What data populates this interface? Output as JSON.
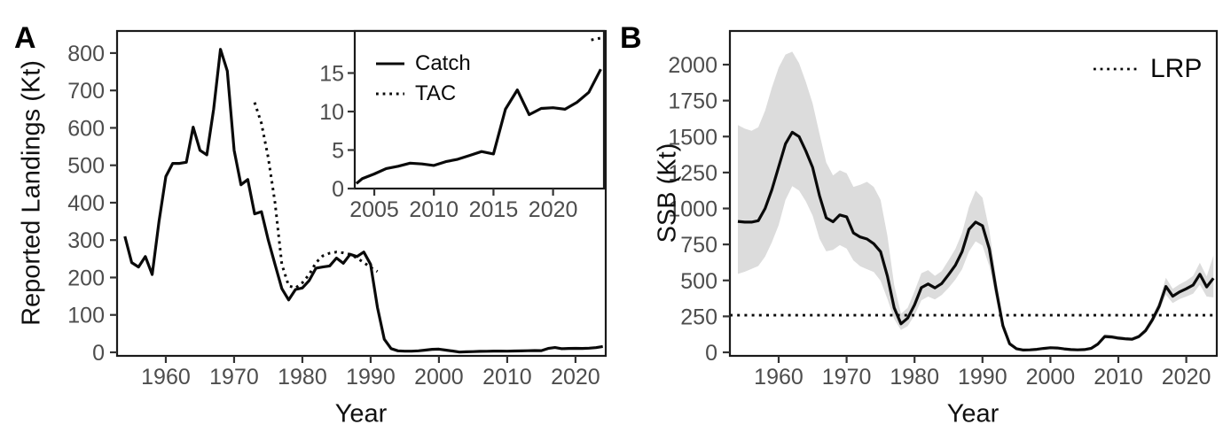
{
  "colors": {
    "background": "#ffffff",
    "line": "#0a0a0a",
    "ribbon": "#dcdcdc",
    "tick_label": "#4d4d4d",
    "tick_mark": "#333333",
    "border": "#1a1a1a",
    "axis_title": "#111111"
  },
  "panels": {
    "a": "A",
    "b": "B"
  },
  "chart_data": [
    {
      "id": "panel_a",
      "type": "line",
      "xlabel": "Year",
      "ylabel": "Reported Landings (Kt)",
      "xlim": [
        1952.86,
        2024.43
      ],
      "ylim": [
        -9.5,
        859
      ],
      "xticks": [
        1960,
        1970,
        1980,
        1990,
        2000,
        2010,
        2020
      ],
      "yticks": [
        0,
        100,
        200,
        300,
        400,
        500,
        600,
        700,
        800
      ],
      "grid": false,
      "legend_entries": [],
      "series": [
        {
          "name": "Catch",
          "style": "solid",
          "points": [
            [
              1954,
              310
            ],
            [
              1955,
              240
            ],
            [
              1956,
              228
            ],
            [
              1957,
              256
            ],
            [
              1958,
              208
            ],
            [
              1959,
              350
            ],
            [
              1960,
              470
            ],
            [
              1961,
              505
            ],
            [
              1962,
              505
            ],
            [
              1963,
              508
            ],
            [
              1964,
              602
            ],
            [
              1965,
              540
            ],
            [
              1966,
              528
            ],
            [
              1967,
              650
            ],
            [
              1968,
              810
            ],
            [
              1969,
              752
            ],
            [
              1970,
              540
            ],
            [
              1971,
              448
            ],
            [
              1972,
              462
            ],
            [
              1973,
              370
            ],
            [
              1974,
              376
            ],
            [
              1975,
              300
            ],
            [
              1976,
              235
            ],
            [
              1977,
              170
            ],
            [
              1978,
              140
            ],
            [
              1979,
              168
            ],
            [
              1980,
              172
            ],
            [
              1981,
              192
            ],
            [
              1982,
              225
            ],
            [
              1983,
              228
            ],
            [
              1984,
              231
            ],
            [
              1985,
              252
            ],
            [
              1986,
              238
            ],
            [
              1987,
              262
            ],
            [
              1988,
              256
            ],
            [
              1989,
              268
            ],
            [
              1990,
              235
            ],
            [
              1991,
              120
            ],
            [
              1992,
              35
            ],
            [
              1993,
              10
            ],
            [
              1994,
              4
            ],
            [
              1995,
              3
            ],
            [
              1996,
              3
            ],
            [
              1997,
              4
            ],
            [
              1998,
              6
            ],
            [
              1999,
              8
            ],
            [
              2000,
              8.5
            ],
            [
              2001,
              6
            ],
            [
              2002,
              3.5
            ],
            [
              2003,
              0.7
            ],
            [
              2004,
              1.3
            ],
            [
              2005,
              1.9
            ],
            [
              2006,
              2.6
            ],
            [
              2007,
              2.9
            ],
            [
              2008,
              3.3
            ],
            [
              2009,
              3.2
            ],
            [
              2010,
              3.0
            ],
            [
              2011,
              3.5
            ],
            [
              2012,
              3.8
            ],
            [
              2013,
              4.3
            ],
            [
              2014,
              4.8
            ],
            [
              2015,
              4.5
            ],
            [
              2016,
              10.3
            ],
            [
              2017,
              12.8
            ],
            [
              2018,
              9.6
            ],
            [
              2019,
              10.4
            ],
            [
              2020,
              10.5
            ],
            [
              2021,
              10.3
            ],
            [
              2022,
              11.2
            ],
            [
              2023,
              12.5
            ],
            [
              2024,
              15.5
            ]
          ]
        },
        {
          "name": "TAC",
          "style": "dotted",
          "points": [
            [
              1973,
              668
            ],
            [
              1974,
              612
            ],
            [
              1975,
              520
            ],
            [
              1976,
              400
            ],
            [
              1977,
              235
            ],
            [
              1978,
              178
            ],
            [
              1979,
              172
            ],
            [
              1980,
              186
            ],
            [
              1981,
              208
            ],
            [
              1982,
              240
            ],
            [
              1983,
              258
            ],
            [
              1984,
              265
            ],
            [
              1985,
              268
            ],
            [
              1986,
              266
            ],
            [
              1987,
              262
            ],
            [
              1988,
              252
            ],
            [
              1989,
              240
            ],
            [
              1990,
              227
            ],
            [
              1991,
              216
            ]
          ]
        }
      ]
    },
    {
      "id": "inset",
      "type": "line",
      "xlabel": "",
      "ylabel": "",
      "xlim": [
        2003.36,
        2024.27
      ],
      "ylim": [
        0,
        20.46
      ],
      "xticks": [
        2005,
        2010,
        2015,
        2020
      ],
      "yticks": [
        0,
        5,
        10,
        15
      ],
      "grid": false,
      "legend_position": "top-left",
      "legend_entries": [
        "Catch",
        "TAC"
      ],
      "series": [
        {
          "name": "Catch",
          "style": "solid",
          "points": [
            [
              2003.5,
              0.65
            ],
            [
              2004,
              1.3
            ],
            [
              2005,
              1.9
            ],
            [
              2006,
              2.6
            ],
            [
              2007,
              2.9
            ],
            [
              2008,
              3.3
            ],
            [
              2009,
              3.2
            ],
            [
              2010,
              3.0
            ],
            [
              2011,
              3.5
            ],
            [
              2012,
              3.8
            ],
            [
              2013,
              4.3
            ],
            [
              2014,
              4.8
            ],
            [
              2015,
              4.5
            ],
            [
              2016,
              10.3
            ],
            [
              2017,
              12.8
            ],
            [
              2018,
              9.6
            ],
            [
              2019,
              10.4
            ],
            [
              2020,
              10.5
            ],
            [
              2021,
              10.3
            ],
            [
              2022,
              11.2
            ],
            [
              2023,
              12.5
            ],
            [
              2024,
              15.5
            ]
          ]
        },
        {
          "name": "TAC",
          "style": "dotted",
          "points": [
            [
              2023.2,
              19.3
            ],
            [
              2023.7,
              19.45
            ],
            [
              2024.2,
              19.6
            ]
          ]
        }
      ]
    },
    {
      "id": "panel_b",
      "type": "line",
      "xlabel": "Year",
      "ylabel": "SSB (Kt)",
      "xlim": [
        1952.82,
        2024.49
      ],
      "ylim": [
        -24.6,
        2233.9
      ],
      "xticks": [
        1960,
        1970,
        1980,
        1990,
        2000,
        2010,
        2020
      ],
      "yticks": [
        0,
        250,
        500,
        750,
        1000,
        1250,
        1500,
        1750,
        2000
      ],
      "grid": false,
      "legend_position": "top-right",
      "legend_entries": [
        "LRP"
      ],
      "ref_line": {
        "label": "LRP",
        "value": 258,
        "style": "dotted"
      },
      "ribbon": {
        "x": [
          1954,
          1955,
          1956,
          1957,
          1958,
          1959,
          1960,
          1961,
          1962,
          1963,
          1964,
          1965,
          1966,
          1967,
          1968,
          1969,
          1970,
          1971,
          1972,
          1973,
          1974,
          1975,
          1976,
          1977,
          1978,
          1979,
          1980,
          1981,
          1982,
          1983,
          1984,
          1985,
          1986,
          1987,
          1988,
          1989,
          1990,
          1991,
          1992,
          1993,
          1994,
          1995,
          1996,
          1997,
          1998,
          1999,
          2000,
          2001,
          2002,
          2003,
          2004,
          2005,
          2006,
          2007,
          2008,
          2009,
          2010,
          2011,
          2012,
          2013,
          2014,
          2015,
          2016,
          2017,
          2018,
          2019,
          2020,
          2021,
          2022,
          2023,
          2024
        ],
        "upper": [
          1580,
          1555,
          1540,
          1565,
          1680,
          1840,
          1980,
          2070,
          2090,
          2010,
          1880,
          1730,
          1520,
          1320,
          1230,
          1265,
          1245,
          1150,
          1165,
          1185,
          1150,
          1060,
          810,
          470,
          268,
          310,
          425,
          550,
          572,
          532,
          565,
          640,
          718,
          830,
          1010,
          1125,
          1075,
          850,
          520,
          225,
          75,
          32,
          22,
          23,
          28,
          35,
          41,
          38,
          31,
          25,
          23,
          26,
          36,
          70,
          126,
          122,
          114,
          108,
          104,
          124,
          170,
          252,
          358,
          518,
          442,
          472,
          498,
          532,
          622,
          528,
          672
        ],
        "lower": [
          545,
          560,
          580,
          600,
          665,
          765,
          885,
          1060,
          1155,
          1125,
          1050,
          950,
          790,
          702,
          712,
          745,
          722,
          638,
          598,
          578,
          558,
          498,
          372,
          232,
          156,
          182,
          258,
          362,
          388,
          368,
          398,
          448,
          505,
          578,
          700,
          772,
          742,
          598,
          368,
          150,
          46,
          18,
          11,
          12,
          15,
          20,
          24,
          22,
          17,
          13,
          12,
          13,
          20,
          47,
          95,
          93,
          85,
          81,
          78,
          95,
          131,
          199,
          284,
          400,
          342,
          370,
          388,
          408,
          470,
          388,
          382
        ]
      },
      "series": [
        {
          "name": "SSB",
          "style": "solid",
          "points": [
            [
              1954,
              910
            ],
            [
              1955,
              905
            ],
            [
              1956,
              905
            ],
            [
              1957,
              915
            ],
            [
              1958,
              1000
            ],
            [
              1959,
              1130
            ],
            [
              1960,
              1290
            ],
            [
              1961,
              1450
            ],
            [
              1962,
              1530
            ],
            [
              1963,
              1500
            ],
            [
              1964,
              1400
            ],
            [
              1965,
              1285
            ],
            [
              1966,
              1090
            ],
            [
              1967,
              935
            ],
            [
              1968,
              908
            ],
            [
              1969,
              955
            ],
            [
              1970,
              942
            ],
            [
              1971,
              830
            ],
            [
              1972,
              802
            ],
            [
              1973,
              788
            ],
            [
              1974,
              755
            ],
            [
              1975,
              700
            ],
            [
              1976,
              530
            ],
            [
              1977,
              310
            ],
            [
              1978,
              198
            ],
            [
              1979,
              238
            ],
            [
              1980,
              330
            ],
            [
              1981,
              450
            ],
            [
              1982,
              475
            ],
            [
              1983,
              448
            ],
            [
              1984,
              478
            ],
            [
              1985,
              540
            ],
            [
              1986,
              605
            ],
            [
              1987,
              700
            ],
            [
              1988,
              855
            ],
            [
              1989,
              905
            ],
            [
              1990,
              880
            ],
            [
              1991,
              720
            ],
            [
              1992,
              440
            ],
            [
              1993,
              185
            ],
            [
              1994,
              60
            ],
            [
              1995,
              25
            ],
            [
              1996,
              16
            ],
            [
              1997,
              17
            ],
            [
              1998,
              21
            ],
            [
              1999,
              27
            ],
            [
              2000,
              32
            ],
            [
              2001,
              30
            ],
            [
              2002,
              24
            ],
            [
              2003,
              19
            ],
            [
              2004,
              17
            ],
            [
              2005,
              19
            ],
            [
              2006,
              28
            ],
            [
              2007,
              58
            ],
            [
              2008,
              110
            ],
            [
              2009,
              107
            ],
            [
              2010,
              99
            ],
            [
              2011,
              94
            ],
            [
              2012,
              91
            ],
            [
              2013,
              109
            ],
            [
              2014,
              150
            ],
            [
              2015,
              225
            ],
            [
              2016,
              320
            ],
            [
              2017,
              458
            ],
            [
              2018,
              390
            ],
            [
              2019,
              420
            ],
            [
              2020,
              442
            ],
            [
              2021,
              468
            ],
            [
              2022,
              543
            ],
            [
              2023,
              455
            ],
            [
              2024,
              515
            ]
          ]
        }
      ]
    }
  ]
}
